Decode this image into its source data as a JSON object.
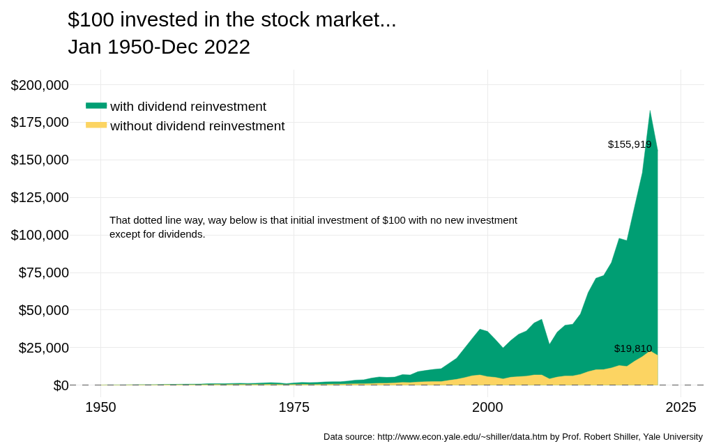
{
  "chart_data": {
    "type": "area",
    "title": "$100 invested in the stock market...\nJan 1950-Dec 2022",
    "x": [
      1950,
      1951,
      1952,
      1953,
      1954,
      1955,
      1956,
      1957,
      1958,
      1959,
      1960,
      1961,
      1962,
      1963,
      1964,
      1965,
      1966,
      1967,
      1968,
      1969,
      1970,
      1971,
      1972,
      1973,
      1974,
      1975,
      1976,
      1977,
      1978,
      1979,
      1980,
      1981,
      1982,
      1983,
      1984,
      1985,
      1986,
      1987,
      1988,
      1989,
      1990,
      1991,
      1992,
      1993,
      1994,
      1995,
      1996,
      1997,
      1998,
      1999,
      2000,
      2001,
      2002,
      2003,
      2004,
      2005,
      2006,
      2007,
      2008,
      2009,
      2010,
      2011,
      2012,
      2013,
      2014,
      2015,
      2016,
      2017,
      2018,
      2019,
      2020,
      2021,
      2022
    ],
    "series": [
      {
        "name": "with dividend reinvestment",
        "color": "#009e73",
        "values": [
          100,
          200,
          200,
          200,
          300,
          400,
          400,
          400,
          500,
          600,
          600,
          700,
          700,
          800,
          1000,
          1100,
          1000,
          1200,
          1300,
          1200,
          1300,
          1500,
          1700,
          1500,
          1100,
          1500,
          1800,
          1700,
          1800,
          2200,
          2300,
          2300,
          2800,
          3400,
          3600,
          4700,
          5500,
          5200,
          5400,
          7100,
          6800,
          9000,
          9800,
          10500,
          11000,
          14500,
          18000,
          24500,
          31000,
          37300,
          35800,
          30500,
          24800,
          29800,
          33900,
          36100,
          41400,
          43900,
          27100,
          35400,
          39900,
          40600,
          47400,
          61700,
          71200,
          73000,
          81600,
          97800,
          96300,
          118900,
          141400,
          182900,
          155919
        ]
      },
      {
        "name": "without dividend reinvestment",
        "color": "#fcd462",
        "values": [
          100,
          100,
          100,
          100,
          200,
          200,
          200,
          200,
          300,
          300,
          300,
          300,
          300,
          400,
          400,
          500,
          400,
          500,
          500,
          500,
          500,
          500,
          600,
          500,
          400,
          500,
          600,
          500,
          500,
          600,
          700,
          700,
          800,
          900,
          900,
          1100,
          1300,
          1300,
          1500,
          1800,
          1700,
          2100,
          2300,
          2400,
          2400,
          3200,
          3900,
          5000,
          6300,
          6800,
          5700,
          5200,
          4200,
          5300,
          5700,
          6000,
          6800,
          6800,
          4200,
          5400,
          6100,
          6200,
          7200,
          9000,
          10300,
          10400,
          11500,
          13100,
          12500,
          16000,
          19000,
          22900,
          19810
        ]
      }
    ],
    "xlim": [
      1946,
      2028
    ],
    "xticks": [
      1950,
      1975,
      2000,
      2025
    ],
    "ylim": [
      -8000,
      210000
    ],
    "yticks": [
      {
        "value": 0,
        "label": "$0"
      },
      {
        "value": 25000,
        "label": "$25,000"
      },
      {
        "value": 50000,
        "label": "$50,000"
      },
      {
        "value": 75000,
        "label": "$75,000"
      },
      {
        "value": 100000,
        "label": "$100,000"
      },
      {
        "value": 125000,
        "label": "$125,000"
      },
      {
        "value": 150000,
        "label": "$150,000"
      },
      {
        "value": 175000,
        "label": "$175,000"
      },
      {
        "value": 200000,
        "label": "$200,000"
      }
    ],
    "ref_lines": [
      {
        "axis": "y",
        "value": 100,
        "color": "#555555",
        "line_style": "dashed"
      }
    ],
    "annotations": [
      {
        "text": "$155,919",
        "x": 2022,
        "y": 155919
      },
      {
        "text": "$19,810",
        "x": 2022,
        "y": 19810
      },
      "That dotted line way, way below is that initial investment of $100 with no new investment\nexcept for dividends.",
      "Data source: http://www.econ.yale.edu/~shiller/data.htm by Prof. Robert Shiller, Yale University"
    ],
    "grid": true,
    "legend": "top left"
  }
}
